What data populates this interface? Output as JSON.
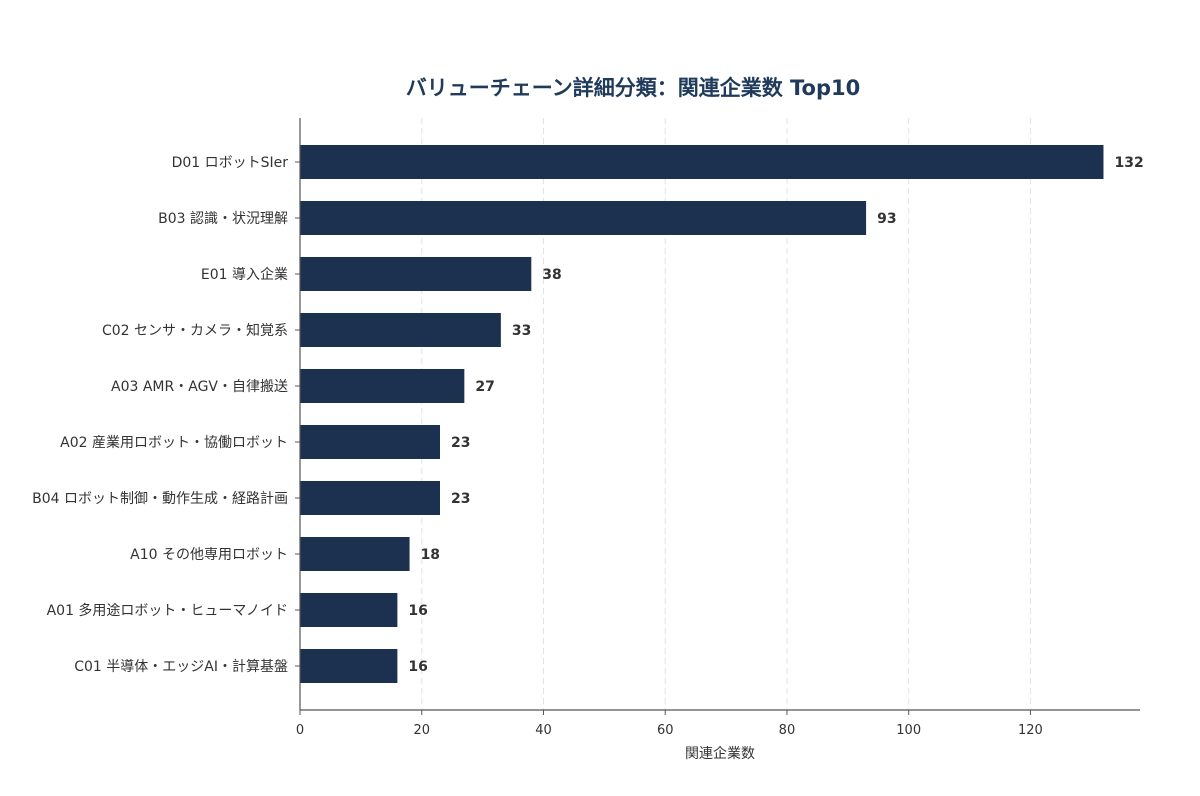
{
  "chart_data": {
    "type": "bar",
    "orientation": "horizontal",
    "title": "バリューチェーン詳細分類：関連企業数 Top10",
    "xlabel": "関連企業数",
    "ylabel": "",
    "categories": [
      "D01 ロボットSIer",
      "B03 認識・状況理解",
      "E01 導入企業",
      "C02 センサ・カメラ・知覚系",
      "A03 AMR・AGV・自律搬送",
      "A02 産業用ロボット・協働ロボット",
      "B04 ロボット制御・動作生成・経路計画",
      "A10 その他専用ロボット",
      "A01 多用途ロボット・ヒューマノイド",
      "C01 半導体・エッジAI・計算基盤"
    ],
    "values": [
      132,
      93,
      38,
      33,
      27,
      23,
      23,
      18,
      16,
      16
    ],
    "xlim": [
      0,
      138
    ],
    "xticks": [
      0,
      20,
      40,
      60,
      80,
      100,
      120
    ],
    "grid": "vertical",
    "legend": "none"
  },
  "colors": {
    "bar": "#1c3150",
    "title": "#1f3a5a",
    "text": "#333333",
    "axis": "#555555",
    "grid": "#e2e2ea"
  }
}
